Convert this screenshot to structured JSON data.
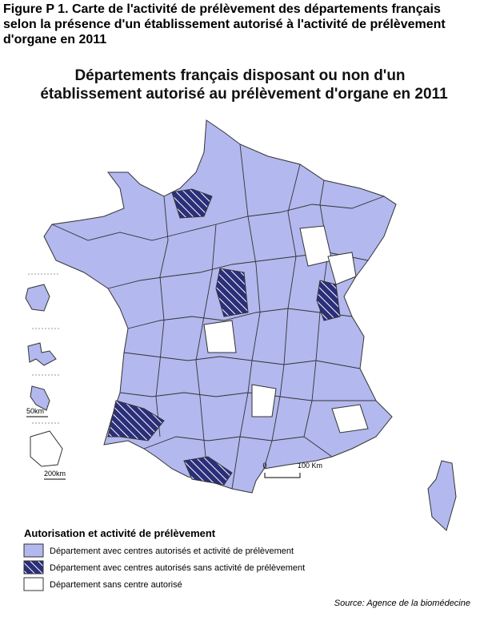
{
  "header": {
    "title": "Figure P 1. Carte de l'activité de prélèvement des départements français selon la présence d'un établissement autorisé à l'activité de prélèvement d'organe en 2011"
  },
  "map": {
    "title_lines": [
      "Départements français disposant ou non d'un",
      "établissement autorisé au prélèvement d'organe en 2011"
    ],
    "scale": {
      "start": "0",
      "end": "100 Km"
    },
    "insets": [
      {
        "scale": "50km"
      },
      {
        "scale": "200km"
      }
    ]
  },
  "legend": {
    "title": "Autorisation et activité de prélèvement",
    "items": [
      {
        "label": "Département avec centres autorisés et activité de prélèvement"
      },
      {
        "label": "Département avec centres autorisés sans activité de prélèvement"
      },
      {
        "label": "Département sans centre autorisé"
      }
    ]
  },
  "source": "Source: Agence de la biomédecine"
}
